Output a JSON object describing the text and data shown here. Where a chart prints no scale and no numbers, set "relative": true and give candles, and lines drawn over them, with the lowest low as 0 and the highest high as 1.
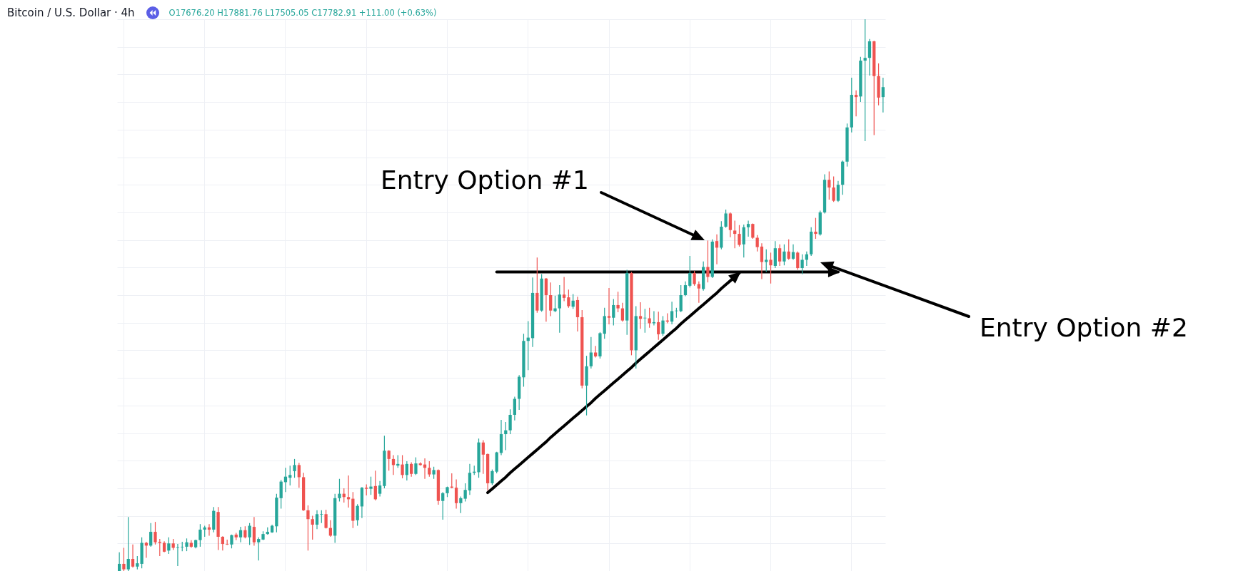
{
  "chart_data": {
    "type": "candlestick",
    "title": "Bitcoin / U.S. Dollar · 4h",
    "subtitle": "O17676.20 H17881.76 L17505.05 C17782.91 +111.00 (+0.63%)",
    "annotations": [
      "Entry Option #1",
      "Entry Option #2"
    ],
    "relative": true,
    "grid": true,
    "categories": [
      null,
      null,
      null,
      null,
      null,
      null,
      null,
      null,
      null,
      null,
      null,
      null,
      null,
      null,
      null,
      null,
      null,
      null,
      null,
      null,
      null,
      null,
      null,
      null,
      null,
      null,
      null,
      null,
      null,
      null,
      null,
      null,
      null,
      null,
      null,
      null,
      null,
      null,
      null,
      null,
      null,
      null,
      null,
      null,
      null,
      null,
      null,
      null,
      null,
      null,
      null,
      null,
      null,
      null,
      null,
      null,
      null,
      null,
      null,
      null,
      null,
      null,
      null,
      null,
      null,
      null,
      null,
      null,
      null,
      null,
      null,
      null,
      null,
      null,
      null,
      null,
      null,
      null,
      null,
      null,
      null,
      null,
      null,
      null,
      null,
      null,
      null,
      null,
      null,
      null,
      null,
      null,
      null,
      null,
      null,
      null,
      null,
      null,
      null,
      null,
      null,
      null,
      null,
      null,
      null,
      null,
      null,
      null,
      null,
      null,
      null,
      null,
      null,
      null,
      null,
      null,
      null,
      null,
      null,
      null,
      null,
      null,
      null,
      null,
      null,
      null,
      null,
      null,
      null,
      null,
      null,
      null,
      null,
      null,
      null,
      null,
      null,
      null,
      null,
      null,
      null,
      null,
      null,
      null,
      null,
      null,
      null,
      null,
      null,
      null,
      null,
      null,
      null,
      null,
      null,
      null,
      null,
      null,
      null,
      null,
      null,
      null,
      null,
      null,
      null,
      null,
      null,
      null,
      null,
      null,
      null
    ],
    "ohlc": [
      [
        0,
        0.034,
        0,
        0.013
      ],
      [
        0.013,
        0.042,
        0,
        0.003
      ],
      [
        0.003,
        0.098,
        0,
        0.022
      ],
      [
        0.022,
        0.048,
        0.006,
        0.008
      ],
      [
        0.008,
        0.027,
        0.003,
        0.014
      ],
      [
        0.013,
        0.061,
        0.005,
        0.051
      ],
      [
        0.051,
        0.053,
        0.024,
        0.046
      ],
      [
        0.046,
        0.087,
        0.044,
        0.071
      ],
      [
        0.071,
        0.089,
        0.048,
        0.052
      ],
      [
        0.053,
        0.058,
        0.027,
        0.051
      ],
      [
        0.051,
        0.054,
        0.034,
        0.035
      ],
      [
        0.037,
        0.061,
        0.031,
        0.05
      ],
      [
        0.05,
        0.058,
        0.038,
        0.042
      ],
      [
        0.042,
        0.049,
        0.009,
        0.043
      ],
      [
        0.043,
        0.053,
        0.036,
        0.044
      ],
      [
        0.044,
        0.059,
        0.036,
        0.052
      ],
      [
        0.051,
        0.056,
        0.042,
        0.044
      ],
      [
        0.043,
        0.057,
        0.041,
        0.056
      ],
      [
        0.056,
        0.085,
        0.044,
        0.075
      ],
      [
        0.075,
        0.082,
        0.062,
        0.079
      ],
      [
        0.079,
        0.085,
        0.064,
        0.075
      ],
      [
        0.075,
        0.116,
        0.07,
        0.109
      ],
      [
        0.107,
        0.116,
        0.038,
        0.062
      ],
      [
        0.062,
        0.063,
        0.037,
        0.049
      ],
      [
        0.049,
        0.057,
        0.047,
        0.048
      ],
      [
        0.048,
        0.066,
        0.041,
        0.065
      ],
      [
        0.066,
        0.069,
        0.056,
        0.061
      ],
      [
        0.061,
        0.08,
        0.052,
        0.074
      ],
      [
        0.074,
        0.081,
        0.059,
        0.061
      ],
      [
        0.061,
        0.087,
        0.047,
        0.082
      ],
      [
        0.08,
        0.098,
        0.046,
        0.052
      ],
      [
        0.052,
        0.061,
        0.019,
        0.058
      ],
      [
        0.057,
        0.072,
        0.056,
        0.067
      ],
      [
        0.067,
        0.079,
        0.066,
        0.071
      ],
      [
        0.07,
        0.084,
        0.069,
        0.082
      ],
      [
        0.081,
        0.14,
        0.07,
        0.133
      ],
      [
        0.132,
        0.165,
        0.113,
        0.162
      ],
      [
        0.161,
        0.187,
        0.143,
        0.171
      ],
      [
        0.169,
        0.191,
        0.155,
        0.174
      ],
      [
        0.181,
        0.203,
        0.169,
        0.192
      ],
      [
        0.192,
        0.196,
        0.151,
        0.17
      ],
      [
        0.17,
        0.178,
        0.109,
        0.11
      ],
      [
        0.11,
        0.119,
        0.037,
        0.094
      ],
      [
        0.094,
        0.1,
        0.057,
        0.084
      ],
      [
        0.084,
        0.11,
        0.076,
        0.103
      ],
      [
        0.102,
        0.11,
        0.087,
        0.103
      ],
      [
        0.103,
        0.111,
        0.077,
        0.078
      ],
      [
        0.078,
        0.092,
        0.062,
        0.064
      ],
      [
        0.064,
        0.14,
        0.051,
        0.132
      ],
      [
        0.132,
        0.167,
        0.126,
        0.14
      ],
      [
        0.14,
        0.15,
        0.124,
        0.134
      ],
      [
        0.134,
        0.173,
        0.115,
        0.13
      ],
      [
        0.131,
        0.143,
        0.078,
        0.091
      ],
      [
        0.092,
        0.121,
        0.082,
        0.118
      ],
      [
        0.117,
        0.152,
        0.096,
        0.151
      ],
      [
        0.151,
        0.157,
        0.137,
        0.149
      ],
      [
        0.149,
        0.171,
        0.138,
        0.153
      ],
      [
        0.154,
        0.182,
        0.128,
        0.13
      ],
      [
        0.14,
        0.163,
        0.135,
        0.155
      ],
      [
        0.154,
        0.245,
        0.15,
        0.218
      ],
      [
        0.218,
        0.219,
        0.182,
        0.203
      ],
      [
        0.203,
        0.21,
        0.174,
        0.192
      ],
      [
        0.191,
        0.21,
        0.187,
        0.194
      ],
      [
        0.193,
        0.21,
        0.168,
        0.174
      ],
      [
        0.174,
        0.199,
        0.164,
        0.194
      ],
      [
        0.194,
        0.197,
        0.171,
        0.176
      ],
      [
        0.176,
        0.206,
        0.174,
        0.195
      ],
      [
        0.195,
        0.197,
        0.191,
        0.192
      ],
      [
        0.193,
        0.204,
        0.167,
        0.187
      ],
      [
        0.187,
        0.199,
        0.171,
        0.175
      ],
      [
        0.175,
        0.189,
        0.167,
        0.183
      ],
      [
        0.183,
        0.184,
        0.12,
        0.127
      ],
      [
        0.127,
        0.143,
        0.093,
        0.141
      ],
      [
        0.141,
        0.153,
        0.134,
        0.152
      ],
      [
        0.153,
        0.177,
        0.15,
        0.151
      ],
      [
        0.151,
        0.166,
        0.113,
        0.123
      ],
      [
        0.123,
        0.135,
        0.105,
        0.132
      ],
      [
        0.131,
        0.159,
        0.126,
        0.147
      ],
      [
        0.146,
        0.194,
        0.138,
        0.178
      ],
      [
        0.178,
        0.191,
        0.174,
        0.18
      ],
      [
        0.179,
        0.24,
        0.169,
        0.233
      ],
      [
        0.233,
        0.237,
        0.176,
        0.211
      ],
      [
        0.212,
        0.213,
        0.146,
        0.159
      ],
      [
        0.159,
        0.184,
        0.156,
        0.181
      ],
      [
        0.18,
        0.216,
        0.177,
        0.215
      ],
      [
        0.214,
        0.274,
        0.21,
        0.248
      ],
      [
        0.248,
        0.27,
        0.219,
        0.255
      ],
      [
        0.255,
        0.293,
        0.248,
        0.283
      ],
      [
        0.283,
        0.316,
        0.273,
        0.312
      ],
      [
        0.312,
        0.355,
        0.292,
        0.352
      ],
      [
        0.351,
        0.43,
        0.334,
        0.417
      ],
      [
        0.417,
        0.453,
        0.364,
        0.423
      ],
      [
        0.422,
        0.532,
        0.406,
        0.504
      ],
      [
        0.504,
        0.568,
        0.468,
        0.472
      ],
      [
        0.472,
        0.538,
        0.47,
        0.53
      ],
      [
        0.53,
        0.531,
        0.452,
        0.5
      ],
      [
        0.5,
        0.523,
        0.462,
        0.472
      ],
      [
        0.471,
        0.499,
        0.469,
        0.476
      ],
      [
        0.476,
        0.518,
        0.432,
        0.501
      ],
      [
        0.501,
        0.533,
        0.489,
        0.495
      ],
      [
        0.496,
        0.51,
        0.477,
        0.48
      ],
      [
        0.479,
        0.502,
        0.475,
        0.49
      ],
      [
        0.491,
        0.497,
        0.434,
        0.46
      ],
      [
        0.46,
        0.473,
        0.331,
        0.336
      ],
      [
        0.336,
        0.39,
        0.282,
        0.371
      ],
      [
        0.371,
        0.424,
        0.367,
        0.396
      ],
      [
        0.396,
        0.408,
        0.387,
        0.389
      ],
      [
        0.389,
        0.433,
        0.385,
        0.431
      ],
      [
        0.43,
        0.477,
        0.421,
        0.462
      ],
      [
        0.462,
        0.513,
        0.447,
        0.459
      ],
      [
        0.459,
        0.493,
        0.445,
        0.482
      ],
      [
        0.482,
        0.506,
        0.469,
        0.476
      ],
      [
        0.476,
        0.486,
        0.452,
        0.454
      ],
      [
        0.454,
        0.546,
        0.428,
        0.54
      ],
      [
        0.54,
        0.542,
        0.391,
        0.4
      ],
      [
        0.4,
        0.48,
        0.367,
        0.462
      ],
      [
        0.462,
        0.487,
        0.439,
        0.457
      ],
      [
        0.458,
        0.475,
        0.432,
        0.459
      ],
      [
        0.458,
        0.477,
        0.441,
        0.449
      ],
      [
        0.449,
        0.471,
        0.445,
        0.451
      ],
      [
        0.451,
        0.47,
        0.419,
        0.429
      ],
      [
        0.43,
        0.462,
        0.426,
        0.454
      ],
      [
        0.454,
        0.467,
        0.449,
        0.452
      ],
      [
        0.452,
        0.488,
        0.447,
        0.471
      ],
      [
        0.471,
        0.477,
        0.459,
        0.472
      ],
      [
        0.471,
        0.518,
        0.469,
        0.5
      ],
      [
        0.5,
        0.525,
        0.498,
        0.518
      ],
      [
        0.517,
        0.571,
        0.514,
        0.54
      ],
      [
        0.54,
        0.544,
        0.517,
        0.52
      ],
      [
        0.52,
        0.525,
        0.486,
        0.512
      ],
      [
        0.511,
        0.561,
        0.508,
        0.551
      ],
      [
        0.551,
        0.599,
        0.523,
        0.533
      ],
      [
        0.533,
        0.601,
        0.531,
        0.597
      ],
      [
        0.598,
        0.61,
        0.556,
        0.586
      ],
      [
        0.586,
        0.634,
        0.583,
        0.624
      ],
      [
        0.624,
        0.655,
        0.622,
        0.648
      ],
      [
        0.648,
        0.65,
        0.605,
        0.618
      ],
      [
        0.617,
        0.635,
        0.585,
        0.611
      ],
      [
        0.611,
        0.627,
        0.588,
        0.591
      ],
      [
        0.592,
        0.628,
        0.568,
        0.623
      ],
      [
        0.623,
        0.635,
        0.606,
        0.629
      ],
      [
        0.629,
        0.63,
        0.602,
        0.604
      ],
      [
        0.604,
        0.609,
        0.579,
        0.587
      ],
      [
        0.588,
        0.594,
        0.529,
        0.56
      ],
      [
        0.56,
        0.583,
        0.542,
        0.564
      ],
      [
        0.564,
        0.577,
        0.521,
        0.554
      ],
      [
        0.553,
        0.598,
        0.549,
        0.585
      ],
      [
        0.585,
        0.592,
        0.553,
        0.561
      ],
      [
        0.561,
        0.592,
        0.554,
        0.579
      ],
      [
        0.579,
        0.601,
        0.564,
        0.566
      ],
      [
        0.566,
        0.592,
        0.564,
        0.578
      ],
      [
        0.577,
        0.579,
        0.546,
        0.549
      ],
      [
        0.549,
        0.574,
        0.538,
        0.564
      ],
      [
        0.564,
        0.579,
        0.553,
        0.574
      ],
      [
        0.574,
        0.623,
        0.571,
        0.615
      ],
      [
        0.615,
        0.64,
        0.602,
        0.611
      ],
      [
        0.61,
        0.653,
        0.608,
        0.65
      ],
      [
        0.65,
        0.719,
        0.648,
        0.709
      ],
      [
        0.709,
        0.724,
        0.673,
        0.695
      ],
      [
        0.695,
        0.715,
        0.669,
        0.671
      ],
      [
        0.671,
        0.707,
        0.669,
        0.7
      ],
      [
        0.7,
        0.744,
        0.682,
        0.742
      ],
      [
        0.742,
        0.811,
        0.733,
        0.804
      ],
      [
        0.804,
        0.894,
        0.795,
        0.863
      ],
      [
        0.863,
        0.871,
        0.824,
        0.859
      ],
      [
        0.86,
        0.932,
        0.85,
        0.925
      ],
      [
        0.925,
        1,
        0.779,
        0.93
      ],
      [
        0.93,
        0.964,
        0.898,
        0.96
      ],
      [
        0.96,
        0.961,
        0.79,
        0.897
      ],
      [
        0.897,
        0.92,
        0.844,
        0.858
      ],
      [
        0.859,
        0.894,
        0.831,
        0.877
      ]
    ],
    "colors": [
      "#26a69a",
      "#ef5350",
      "#26a69a",
      "#ef5350",
      "#26a69a",
      "#26a69a",
      "#ef5350",
      "#26a69a",
      "#ef5350",
      "#ef5350",
      "#ef5350",
      "#26a69a",
      "#ef5350",
      "#26a69a",
      "#26a69a",
      "#26a69a",
      "#ef5350",
      "#26a69a",
      "#26a69a",
      "#26a69a",
      "#ef5350",
      "#26a69a",
      "#ef5350",
      "#ef5350",
      "#ef5350",
      "#26a69a",
      "#ef5350",
      "#26a69a",
      "#ef5350",
      "#26a69a",
      "#ef5350",
      "#26a69a",
      "#26a69a",
      "#26a69a",
      "#26a69a",
      "#26a69a",
      "#26a69a",
      "#26a69a",
      "#26a69a",
      "#26a69a",
      "#ef5350",
      "#ef5350",
      "#ef5350",
      "#ef5350",
      "#26a69a",
      "#26a69a",
      "#ef5350",
      "#ef5350",
      "#26a69a",
      "#26a69a",
      "#ef5350",
      "#ef5350",
      "#ef5350",
      "#26a69a",
      "#26a69a",
      "#ef5350",
      "#26a69a",
      "#ef5350",
      "#26a69a",
      "#26a69a",
      "#ef5350",
      "#ef5350",
      "#26a69a",
      "#ef5350",
      "#26a69a",
      "#ef5350",
      "#26a69a",
      "#ef5350",
      "#ef5350",
      "#ef5350",
      "#26a69a",
      "#ef5350",
      "#26a69a",
      "#26a69a",
      "#ef5350",
      "#ef5350",
      "#26a69a",
      "#26a69a",
      "#26a69a",
      "#26a69a",
      "#26a69a",
      "#ef5350",
      "#ef5350",
      "#26a69a",
      "#26a69a",
      "#26a69a",
      "#26a69a",
      "#26a69a",
      "#26a69a",
      "#26a69a",
      "#26a69a",
      "#26a69a",
      "#26a69a",
      "#ef5350",
      "#26a69a",
      "#ef5350",
      "#ef5350",
      "#26a69a",
      "#26a69a",
      "#ef5350",
      "#ef5350",
      "#26a69a",
      "#ef5350",
      "#ef5350",
      "#26a69a",
      "#26a69a",
      "#ef5350",
      "#26a69a",
      "#26a69a",
      "#ef5350",
      "#26a69a",
      "#ef5350",
      "#ef5350",
      "#26a69a",
      "#ef5350",
      "#26a69a",
      "#ef5350",
      "#26a69a",
      "#ef5350",
      "#26a69a",
      "#ef5350",
      "#26a69a",
      "#ef5350",
      "#26a69a",
      "#26a69a",
      "#26a69a",
      "#26a69a",
      "#26a69a",
      "#ef5350",
      "#ef5350",
      "#26a69a",
      "#ef5350",
      "#26a69a",
      "#ef5350",
      "#26a69a",
      "#26a69a",
      "#ef5350",
      "#ef5350",
      "#ef5350",
      "#26a69a",
      "#26a69a",
      "#ef5350",
      "#ef5350",
      "#ef5350",
      "#26a69a",
      "#ef5350",
      "#26a69a",
      "#ef5350",
      "#26a69a",
      "#ef5350",
      "#26a69a",
      "#ef5350",
      "#26a69a",
      "#26a69a",
      "#26a69a",
      "#ef5350",
      "#26a69a",
      "#26a69a",
      "#ef5350",
      "#ef5350",
      "#26a69a",
      "#26a69a",
      "#26a69a",
      "#26a69a",
      "#ef5350",
      "#26a69a",
      "#26a69a",
      "#26a69a",
      "#ef5350",
      "#ef5350",
      "#26a69a"
    ],
    "series": [
      {
        "type": "line",
        "color": "#000000",
        "values": [
          null,
          null,
          null,
          null,
          null,
          null,
          null,
          null,
          null,
          null,
          null,
          null,
          null,
          null,
          null,
          null,
          null,
          null,
          null,
          null,
          null,
          null,
          null,
          null,
          null,
          null,
          null,
          null,
          null,
          null,
          null,
          null,
          null,
          null,
          null,
          null,
          null,
          null,
          null,
          null,
          null,
          null,
          null,
          null,
          null,
          null,
          null,
          null,
          null,
          null,
          null,
          null,
          null,
          null,
          null,
          null,
          null,
          null,
          null,
          null,
          null,
          null,
          null,
          null,
          null,
          null,
          null,
          null,
          null,
          null,
          null,
          null,
          null,
          null,
          null,
          null,
          null,
          null,
          null,
          null,
          null,
          null,
          0.142,
          0.149,
          0.156,
          0.163,
          0.17,
          0.178,
          0.185,
          0.192,
          0.199,
          0.206,
          0.213,
          0.22,
          0.227,
          0.234,
          0.242,
          0.249,
          0.256,
          0.263,
          0.27,
          0.277,
          0.284,
          0.291,
          0.298,
          0.305,
          0.313,
          0.32,
          0.327,
          0.334,
          0.341,
          0.348,
          0.355,
          0.362,
          0.369,
          0.377,
          0.384,
          0.391,
          0.398,
          0.405,
          0.412,
          0.419,
          0.426,
          0.433,
          0.44,
          0.448,
          0.455,
          0.462,
          0.469,
          0.476,
          0.483,
          0.49,
          0.497,
          0.504,
          0.512,
          0.519,
          0.526,
          0.533,
          0.54,
          null,
          null,
          null,
          null,
          null,
          null,
          null,
          null,
          null,
          null,
          null,
          null,
          null,
          null,
          null,
          null,
          null,
          null,
          null,
          null,
          null,
          null,
          null,
          null,
          null,
          null,
          null,
          null,
          null,
          null,
          null,
          null
        ]
      },
      {
        "type": "line",
        "color": "#000000",
        "values": [
          null,
          null,
          null,
          null,
          null,
          null,
          null,
          null,
          null,
          null,
          null,
          null,
          null,
          null,
          null,
          null,
          null,
          null,
          null,
          null,
          null,
          null,
          null,
          null,
          null,
          null,
          null,
          null,
          null,
          null,
          null,
          null,
          null,
          null,
          null,
          null,
          null,
          null,
          null,
          null,
          null,
          null,
          null,
          null,
          null,
          null,
          null,
          null,
          null,
          null,
          null,
          null,
          null,
          null,
          null,
          null,
          null,
          null,
          null,
          null,
          null,
          null,
          null,
          null,
          null,
          null,
          null,
          null,
          null,
          null,
          null,
          null,
          null,
          null,
          null,
          null,
          null,
          null,
          null,
          null,
          null,
          null,
          null,
          null,
          0.542,
          0.542,
          0.542,
          0.542,
          0.542,
          0.542,
          0.542,
          0.542,
          0.542,
          0.542,
          0.542,
          0.542,
          0.542,
          0.542,
          0.542,
          0.542,
          0.542,
          0.542,
          0.542,
          0.542,
          0.542,
          0.542,
          0.542,
          0.542,
          0.542,
          0.542,
          0.542,
          0.542,
          0.542,
          0.542,
          0.542,
          0.542,
          0.542,
          0.542,
          0.542,
          0.542,
          0.542,
          0.542,
          0.542,
          0.542,
          0.542,
          0.542,
          0.542,
          0.542,
          0.542,
          0.542,
          0.542,
          0.542,
          0.542,
          0.542,
          0.542,
          0.542,
          0.542,
          0.542,
          0.542,
          0.542,
          0.542,
          0.542,
          0.542,
          0.542,
          0.542,
          0.542,
          0.542,
          0.542,
          0.542,
          0.542,
          0.542,
          0.542,
          0.542,
          0.542,
          0.542,
          0.542,
          0.542,
          0.542,
          0.542,
          0.542,
          0.542,
          null,
          null,
          null,
          null,
          null,
          null,
          null,
          null,
          null,
          null
        ]
      }
    ]
  }
}
